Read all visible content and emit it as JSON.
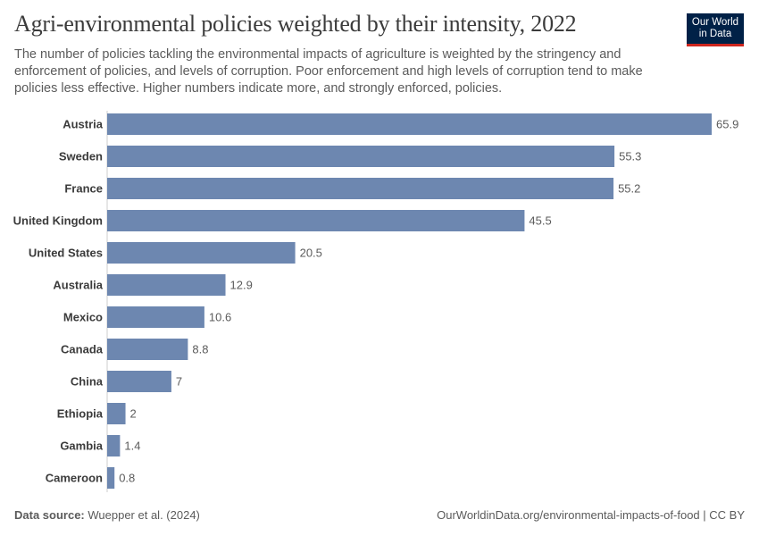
{
  "header": {
    "title": "Agri-environmental policies weighted by their intensity, 2022",
    "subtitle": "The number of policies tackling the environmental impacts of agriculture is weighted by the stringency and enforcement of policies, and levels of corruption. Poor enforcement and high levels of corruption tend to make policies less effective. Higher numbers indicate more, and strongly enforced, policies."
  },
  "logo": {
    "line1": "Our World",
    "line2": "in Data"
  },
  "footer": {
    "source_label": "Data source:",
    "source_value": "Wuepper et al. (2024)",
    "url_license": "OurWorldinData.org/environmental-impacts-of-food | CC BY"
  },
  "colors": {
    "bar": "#6d87b0",
    "axis": "#cccccc"
  },
  "chart_data": {
    "type": "bar",
    "orientation": "horizontal",
    "title": "Agri-environmental policies weighted by their intensity, 2022",
    "categories": [
      "Austria",
      "Sweden",
      "France",
      "United Kingdom",
      "United States",
      "Australia",
      "Mexico",
      "Canada",
      "China",
      "Ethiopia",
      "Gambia",
      "Cameroon"
    ],
    "values": [
      65.9,
      55.3,
      55.2,
      45.5,
      20.5,
      12.9,
      10.6,
      8.8,
      7,
      2,
      1.4,
      0.8
    ],
    "value_labels": [
      "65.9",
      "55.3",
      "55.2",
      "45.5",
      "20.5",
      "12.9",
      "10.6",
      "8.8",
      "7",
      "2",
      "1.4",
      "0.8"
    ],
    "xlim": [
      0,
      65.9
    ],
    "xlabel": "",
    "ylabel": ""
  }
}
